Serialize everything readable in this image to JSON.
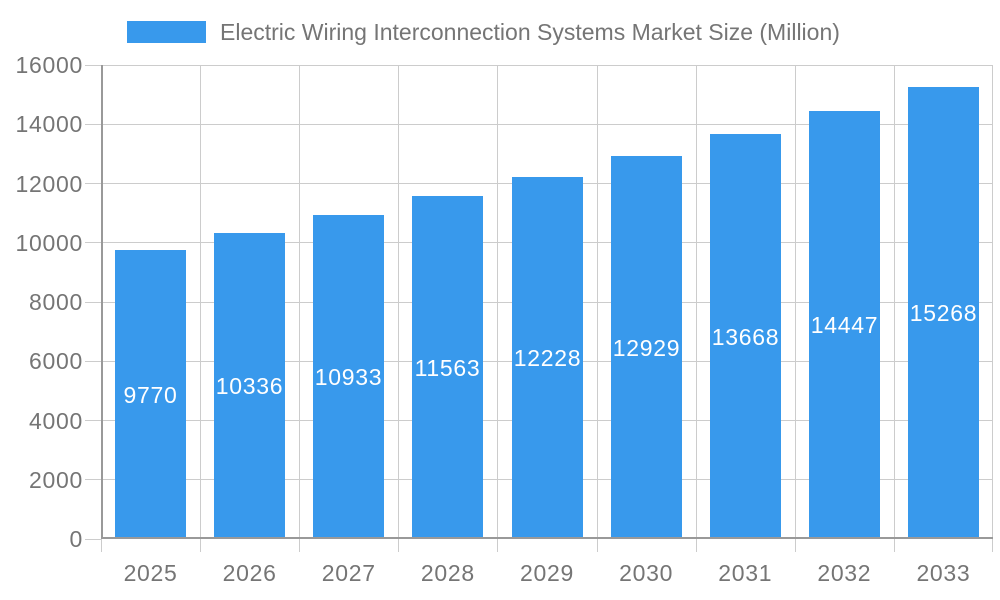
{
  "chart_data": {
    "type": "bar",
    "title": "Electric Wiring Interconnection Systems Market Size (Million)",
    "categories": [
      "2025",
      "2026",
      "2027",
      "2028",
      "2029",
      "2030",
      "2031",
      "2032",
      "2033"
    ],
    "values": [
      9770,
      10336,
      10933,
      11563,
      12228,
      12929,
      13668,
      14447,
      15268
    ],
    "xlabel": "",
    "ylabel": "",
    "ylim": [
      0,
      16000
    ],
    "ytick_interval": 2000,
    "ytick_labels": [
      "0",
      "2000",
      "4000",
      "6000",
      "8000",
      "10000",
      "12000",
      "14000",
      "16000"
    ],
    "grid": true,
    "legend_position": "top",
    "bar_labels_visible": true,
    "colors": {
      "bar": "#3899EC",
      "bar_label": "#FFFFFF",
      "axis_line": "#999999",
      "gridline": "#CCCCCC",
      "tick_label": "#757575",
      "legend_text": "#757575",
      "background": "#FFFFFF"
    }
  }
}
